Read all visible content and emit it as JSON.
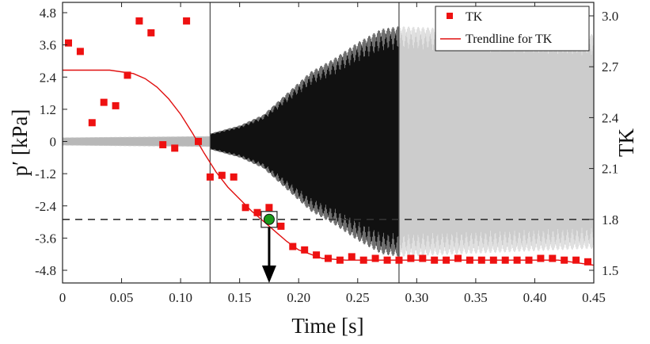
{
  "chart_data": {
    "type": "scatter",
    "xlabel": "Time [s]",
    "ylabel_left": "p′ [kPa]",
    "ylabel_right": "TK",
    "xlim": [
      0,
      0.45
    ],
    "ylim_left": [
      -4.8,
      4.8
    ],
    "ylim_right": [
      1.5,
      3.0
    ],
    "xticks": [
      "0",
      "0.05",
      "0.10",
      "0.15",
      "0.20",
      "0.25",
      "0.30",
      "0.35",
      "0.40",
      "0.45"
    ],
    "yticks_left": [
      "4.8",
      "3.6",
      "2.4",
      "1.2",
      "0",
      "-1.2",
      "-2.4",
      "-3.6",
      "-4.8"
    ],
    "yticks_right": [
      "3.0",
      "2.7",
      "2.4",
      "2.1",
      "1.8",
      "1.5"
    ],
    "grid": false,
    "legend": {
      "placement": "top-right",
      "entries": [
        "TK",
        "Trendline for TK"
      ]
    },
    "colors": {
      "tk_marker": "#ee1111",
      "trendline": "#e01010",
      "pressure_before": "#b8b8b8",
      "pressure_during": "#111111",
      "pressure_after": "#cccccc",
      "highlight_point": "#1a9a1a"
    },
    "vertical_lines_x": [
      0.125,
      0.285
    ],
    "threshold_tk": 1.8,
    "highlight": {
      "x": 0.175,
      "tk": 1.8
    },
    "series": [
      {
        "name": "TK",
        "axis": "right",
        "x": [
          0.005,
          0.015,
          0.025,
          0.035,
          0.045,
          0.055,
          0.065,
          0.075,
          0.085,
          0.095,
          0.105,
          0.115,
          0.125,
          0.135,
          0.145,
          0.155,
          0.165,
          0.175,
          0.185,
          0.195,
          0.205,
          0.215,
          0.225,
          0.235,
          0.245,
          0.255,
          0.265,
          0.275,
          0.285,
          0.295,
          0.305,
          0.315,
          0.325,
          0.335,
          0.345,
          0.355,
          0.365,
          0.375,
          0.385,
          0.395,
          0.405,
          0.415,
          0.425,
          0.435,
          0.445
        ],
        "values": [
          2.84,
          2.79,
          2.37,
          2.49,
          2.47,
          2.65,
          2.97,
          2.9,
          2.24,
          2.22,
          2.97,
          2.26,
          2.05,
          2.06,
          2.05,
          1.87,
          1.84,
          1.87,
          1.76,
          1.64,
          1.62,
          1.59,
          1.57,
          1.56,
          1.58,
          1.56,
          1.57,
          1.56,
          1.56,
          1.57,
          1.57,
          1.56,
          1.56,
          1.57,
          1.56,
          1.56,
          1.56,
          1.56,
          1.56,
          1.56,
          1.57,
          1.57,
          1.56,
          1.56,
          1.55
        ]
      },
      {
        "name": "Trendline for TK",
        "axis": "right",
        "x": [
          0,
          0.02,
          0.04,
          0.06,
          0.07,
          0.08,
          0.09,
          0.1,
          0.11,
          0.12,
          0.13,
          0.14,
          0.15,
          0.16,
          0.17,
          0.18,
          0.19,
          0.2,
          0.22,
          0.24,
          0.26,
          0.28,
          0.3,
          0.35,
          0.4,
          0.42,
          0.44,
          0.45
        ],
        "values": [
          2.68,
          2.68,
          2.68,
          2.66,
          2.63,
          2.58,
          2.51,
          2.42,
          2.31,
          2.19,
          2.08,
          1.99,
          1.92,
          1.85,
          1.79,
          1.73,
          1.67,
          1.62,
          1.57,
          1.56,
          1.56,
          1.56,
          1.56,
          1.56,
          1.56,
          1.56,
          1.54,
          1.53
        ]
      },
      {
        "name": "p′",
        "axis": "left",
        "segments": [
          {
            "x_range": [
              0,
              0.125
            ],
            "envelope": [
              [
                0,
                0.15
              ],
              [
                0.125,
                0.2
              ]
            ]
          },
          {
            "x_range": [
              0.125,
              0.285
            ],
            "envelope": [
              [
                0.125,
                0.3
              ],
              [
                0.15,
                0.6
              ],
              [
                0.17,
                1.0
              ],
              [
                0.19,
                1.8
              ],
              [
                0.21,
                2.6
              ],
              [
                0.23,
                3.1
              ],
              [
                0.25,
                3.7
              ],
              [
                0.27,
                4.2
              ],
              [
                0.285,
                4.3
              ]
            ]
          },
          {
            "x_range": [
              0.285,
              0.45
            ],
            "envelope": [
              [
                0.285,
                4.3
              ],
              [
                0.45,
                4.0
              ]
            ]
          }
        ]
      }
    ]
  }
}
